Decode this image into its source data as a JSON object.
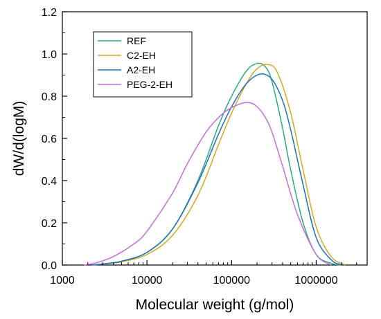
{
  "chart_data": {
    "type": "line",
    "xlabel": "Molecular weight (g/mol)",
    "ylabel": "dW/d(logM)",
    "xscale": "log",
    "xlim": [
      1000,
      4000000
    ],
    "ylim": [
      0,
      1.2
    ],
    "x_ticks": [
      1000,
      10000,
      100000,
      1000000
    ],
    "x_tick_labels": [
      "1000",
      "10000",
      "100000",
      "1000000"
    ],
    "y_ticks": [
      0,
      0.2,
      0.4,
      0.6,
      0.8,
      1.0,
      1.2
    ],
    "y_tick_labels": [
      "0.0",
      "0.2",
      "0.4",
      "0.6",
      "0.8",
      "1.0",
      "1.2"
    ],
    "grid": false,
    "legend_position": "top-left",
    "series": [
      {
        "name": "REF",
        "color": "#2ca87f",
        "x": [
          2200,
          3000,
          5000,
          10000,
          20000,
          40000,
          70000,
          100000,
          150000,
          200000,
          250000,
          300000,
          400000,
          500000,
          700000,
          1000000,
          1500000,
          2000000
        ],
        "y": [
          0,
          0.005,
          0.018,
          0.06,
          0.17,
          0.4,
          0.66,
          0.8,
          0.92,
          0.955,
          0.94,
          0.87,
          0.65,
          0.45,
          0.2,
          0.05,
          0.008,
          0
        ]
      },
      {
        "name": "C2-EH",
        "color": "#d9a521",
        "x": [
          2200,
          3000,
          5000,
          10000,
          20000,
          40000,
          70000,
          100000,
          150000,
          200000,
          270000,
          350000,
          500000,
          700000,
          1000000,
          1500000,
          2200000
        ],
        "y": [
          0,
          0.005,
          0.015,
          0.05,
          0.14,
          0.33,
          0.57,
          0.72,
          0.86,
          0.93,
          0.95,
          0.91,
          0.72,
          0.45,
          0.18,
          0.04,
          0
        ]
      },
      {
        "name": "A2-EH",
        "color": "#1f6fbf",
        "x": [
          2200,
          3000,
          5000,
          10000,
          20000,
          40000,
          70000,
          100000,
          150000,
          220000,
          300000,
          400000,
          500000,
          700000,
          1000000,
          1500000,
          2000000
        ],
        "y": [
          0,
          0.005,
          0.018,
          0.06,
          0.17,
          0.39,
          0.62,
          0.75,
          0.86,
          0.905,
          0.88,
          0.78,
          0.64,
          0.38,
          0.13,
          0.025,
          0
        ]
      },
      {
        "name": "PEG-2-EH",
        "color": "#c76cdb",
        "x": [
          1800,
          2500,
          4000,
          7000,
          10000,
          20000,
          30000,
          50000,
          80000,
          120000,
          160000,
          200000,
          250000,
          300000,
          400000,
          600000,
          1000000,
          1500000
        ],
        "y": [
          0,
          0.01,
          0.04,
          0.1,
          0.16,
          0.34,
          0.48,
          0.63,
          0.72,
          0.76,
          0.77,
          0.75,
          0.7,
          0.63,
          0.47,
          0.24,
          0.05,
          0
        ]
      }
    ]
  }
}
